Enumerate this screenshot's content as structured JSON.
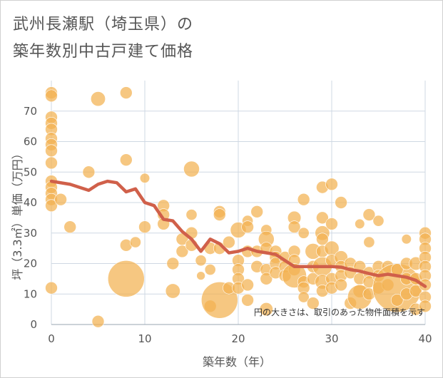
{
  "header": {
    "title_line1": "武州長瀬駅（埼玉県）の",
    "title_line2": "築年数別中古戸建て価格"
  },
  "chart_data": {
    "type": "scatter",
    "xlabel": "築年数（年）",
    "ylabel": "坪（3.3㎡）単価（万円）",
    "xlim": [
      0,
      40
    ],
    "ylim": [
      0,
      80
    ],
    "x_ticks": [
      0,
      10,
      20,
      30,
      40
    ],
    "y_ticks": [
      0,
      10,
      20,
      30,
      40,
      50,
      60,
      70
    ],
    "grid": true,
    "note": "円の大きさは、取引のあった物件面積を示す",
    "colors": {
      "bubble": "#f2b251",
      "trend": "#d0604a",
      "grid": "#cfd8e3"
    },
    "bubbles": [
      {
        "x": 0,
        "y": 76,
        "s": 1
      },
      {
        "x": 0,
        "y": 75,
        "s": 1
      },
      {
        "x": 0,
        "y": 68,
        "s": 1
      },
      {
        "x": 0,
        "y": 66,
        "s": 1
      },
      {
        "x": 0,
        "y": 64,
        "s": 1
      },
      {
        "x": 0,
        "y": 61,
        "s": 1
      },
      {
        "x": 0,
        "y": 59,
        "s": 1
      },
      {
        "x": 0,
        "y": 57,
        "s": 1
      },
      {
        "x": 0,
        "y": 53,
        "s": 1
      },
      {
        "x": 0,
        "y": 47,
        "s": 1
      },
      {
        "x": 0,
        "y": 45,
        "s": 1
      },
      {
        "x": 0,
        "y": 43,
        "s": 1
      },
      {
        "x": 0,
        "y": 41,
        "s": 1
      },
      {
        "x": 0,
        "y": 39,
        "s": 1
      },
      {
        "x": 0,
        "y": 12,
        "s": 1
      },
      {
        "x": 1,
        "y": 41,
        "s": 1
      },
      {
        "x": 2,
        "y": 32,
        "s": 1
      },
      {
        "x": 4,
        "y": 50,
        "s": 1
      },
      {
        "x": 5,
        "y": 74,
        "s": 1.2
      },
      {
        "x": 5,
        "y": 1,
        "s": 1
      },
      {
        "x": 8,
        "y": 76,
        "s": 1
      },
      {
        "x": 8,
        "y": 54,
        "s": 1
      },
      {
        "x": 8,
        "y": 26,
        "s": 1
      },
      {
        "x": 8,
        "y": 15,
        "s": 3
      },
      {
        "x": 9,
        "y": 27,
        "s": 0.9
      },
      {
        "x": 10,
        "y": 48,
        "s": 0.8
      },
      {
        "x": 10,
        "y": 32,
        "s": 1
      },
      {
        "x": 12,
        "y": 39,
        "s": 1
      },
      {
        "x": 12,
        "y": 36,
        "s": 1
      },
      {
        "x": 12,
        "y": 33,
        "s": 1
      },
      {
        "x": 13,
        "y": 20,
        "s": 1
      },
      {
        "x": 13,
        "y": 11,
        "s": 1.2
      },
      {
        "x": 14,
        "y": 28,
        "s": 1
      },
      {
        "x": 14,
        "y": 24,
        "s": 1
      },
      {
        "x": 15,
        "y": 51,
        "s": 1.3
      },
      {
        "x": 15,
        "y": 36,
        "s": 0.9
      },
      {
        "x": 15,
        "y": 30,
        "s": 1
      },
      {
        "x": 15,
        "y": 26,
        "s": 1
      },
      {
        "x": 16,
        "y": 16,
        "s": 0.7
      },
      {
        "x": 16,
        "y": 21,
        "s": 0.9
      },
      {
        "x": 17,
        "y": 25,
        "s": 1
      },
      {
        "x": 17,
        "y": 18,
        "s": 0.9
      },
      {
        "x": 17,
        "y": 6,
        "s": 1
      },
      {
        "x": 18,
        "y": 37,
        "s": 1
      },
      {
        "x": 18,
        "y": 36,
        "s": 1
      },
      {
        "x": 18,
        "y": 25,
        "s": 1
      },
      {
        "x": 18,
        "y": 8,
        "s": 3
      },
      {
        "x": 19,
        "y": 12,
        "s": 1
      },
      {
        "x": 19,
        "y": 27,
        "s": 1
      },
      {
        "x": 20,
        "y": 31,
        "s": 1.3
      },
      {
        "x": 20,
        "y": 21,
        "s": 1
      },
      {
        "x": 20,
        "y": 18,
        "s": 1
      },
      {
        "x": 20,
        "y": 15,
        "s": 1
      },
      {
        "x": 20,
        "y": 12,
        "s": 1
      },
      {
        "x": 21,
        "y": 34,
        "s": 0.9
      },
      {
        "x": 21,
        "y": 32,
        "s": 1
      },
      {
        "x": 21,
        "y": 24,
        "s": 1
      },
      {
        "x": 21,
        "y": 13,
        "s": 1
      },
      {
        "x": 21,
        "y": 8,
        "s": 1
      },
      {
        "x": 22,
        "y": 37,
        "s": 1
      },
      {
        "x": 22,
        "y": 24,
        "s": 1
      },
      {
        "x": 22,
        "y": 19,
        "s": 1
      },
      {
        "x": 23,
        "y": 31,
        "s": 0.9
      },
      {
        "x": 23,
        "y": 28,
        "s": 1.3
      },
      {
        "x": 23,
        "y": 25,
        "s": 1
      },
      {
        "x": 23,
        "y": 18,
        "s": 1
      },
      {
        "x": 23,
        "y": 15,
        "s": 1
      },
      {
        "x": 23,
        "y": 5,
        "s": 1.1
      },
      {
        "x": 24,
        "y": 24,
        "s": 1
      },
      {
        "x": 24,
        "y": 22,
        "s": 1
      },
      {
        "x": 24,
        "y": 20,
        "s": 1
      },
      {
        "x": 24,
        "y": 17,
        "s": 1
      },
      {
        "x": 25,
        "y": 22,
        "s": 1
      },
      {
        "x": 25,
        "y": 19,
        "s": 1
      },
      {
        "x": 25,
        "y": 16,
        "s": 1
      },
      {
        "x": 26,
        "y": 35,
        "s": 1.1
      },
      {
        "x": 26,
        "y": 32,
        "s": 1
      },
      {
        "x": 26,
        "y": 24,
        "s": 1
      },
      {
        "x": 26,
        "y": 21,
        "s": 1
      },
      {
        "x": 26,
        "y": 18,
        "s": 1
      },
      {
        "x": 26,
        "y": 16,
        "s": 2
      },
      {
        "x": 27,
        "y": 41,
        "s": 1
      },
      {
        "x": 27,
        "y": 30,
        "s": 0.9
      },
      {
        "x": 27,
        "y": 14,
        "s": 1
      },
      {
        "x": 27,
        "y": 12,
        "s": 1
      },
      {
        "x": 27,
        "y": 9,
        "s": 0.9
      },
      {
        "x": 28,
        "y": 24,
        "s": 1.3
      },
      {
        "x": 28,
        "y": 19,
        "s": 1
      },
      {
        "x": 28,
        "y": 15,
        "s": 1
      },
      {
        "x": 28,
        "y": 7,
        "s": 1
      },
      {
        "x": 29,
        "y": 45,
        "s": 1
      },
      {
        "x": 29,
        "y": 35,
        "s": 1
      },
      {
        "x": 29,
        "y": 30,
        "s": 1.2
      },
      {
        "x": 29,
        "y": 28,
        "s": 1
      },
      {
        "x": 29,
        "y": 24,
        "s": 1
      },
      {
        "x": 29,
        "y": 19,
        "s": 1.6
      },
      {
        "x": 29,
        "y": 14,
        "s": 1.2
      },
      {
        "x": 29,
        "y": 11,
        "s": 1
      },
      {
        "x": 30,
        "y": 46,
        "s": 1
      },
      {
        "x": 30,
        "y": 33,
        "s": 1
      },
      {
        "x": 30,
        "y": 25,
        "s": 1.2
      },
      {
        "x": 30,
        "y": 21,
        "s": 1
      },
      {
        "x": 30,
        "y": 15,
        "s": 1
      },
      {
        "x": 30,
        "y": 12,
        "s": 1
      },
      {
        "x": 31,
        "y": 40,
        "s": 1
      },
      {
        "x": 31,
        "y": 22,
        "s": 1.1
      },
      {
        "x": 31,
        "y": 19,
        "s": 1
      },
      {
        "x": 31,
        "y": 16,
        "s": 1
      },
      {
        "x": 31,
        "y": 13,
        "s": 1
      },
      {
        "x": 32,
        "y": 20,
        "s": 1
      },
      {
        "x": 32,
        "y": 17,
        "s": 1
      },
      {
        "x": 32,
        "y": 7,
        "s": 1
      },
      {
        "x": 33,
        "y": 33,
        "s": 0.8
      },
      {
        "x": 33,
        "y": 19,
        "s": 1
      },
      {
        "x": 33,
        "y": 15,
        "s": 1
      },
      {
        "x": 33,
        "y": 11,
        "s": 1.1
      },
      {
        "x": 33,
        "y": 9,
        "s": 2
      },
      {
        "x": 34,
        "y": 36,
        "s": 1
      },
      {
        "x": 34,
        "y": 27,
        "s": 0.9
      },
      {
        "x": 34,
        "y": 17,
        "s": 1
      },
      {
        "x": 34,
        "y": 14,
        "s": 1
      },
      {
        "x": 34,
        "y": 10,
        "s": 1
      },
      {
        "x": 35,
        "y": 34,
        "s": 0.9
      },
      {
        "x": 35,
        "y": 19,
        "s": 1
      },
      {
        "x": 35,
        "y": 16,
        "s": 1
      },
      {
        "x": 35,
        "y": 12,
        "s": 1
      },
      {
        "x": 36,
        "y": 19,
        "s": 1
      },
      {
        "x": 36,
        "y": 13,
        "s": 1
      },
      {
        "x": 37,
        "y": 12,
        "s": 4
      },
      {
        "x": 37,
        "y": 18,
        "s": 1
      },
      {
        "x": 37,
        "y": 8,
        "s": 1
      },
      {
        "x": 38,
        "y": 28,
        "s": 0.8
      },
      {
        "x": 38,
        "y": 20,
        "s": 1
      },
      {
        "x": 38,
        "y": 15,
        "s": 1
      },
      {
        "x": 38,
        "y": 10,
        "s": 1
      },
      {
        "x": 39,
        "y": 20,
        "s": 1.1
      },
      {
        "x": 39,
        "y": 15,
        "s": 1
      },
      {
        "x": 39,
        "y": 11,
        "s": 1
      },
      {
        "x": 39,
        "y": 5,
        "s": 1
      },
      {
        "x": 40,
        "y": 30,
        "s": 1
      },
      {
        "x": 40,
        "y": 28,
        "s": 1
      },
      {
        "x": 40,
        "y": 25,
        "s": 1
      },
      {
        "x": 40,
        "y": 22,
        "s": 1
      },
      {
        "x": 40,
        "y": 19,
        "s": 1
      },
      {
        "x": 40,
        "y": 16,
        "s": 1
      },
      {
        "x": 40,
        "y": 13,
        "s": 1
      },
      {
        "x": 40,
        "y": 9,
        "s": 1
      },
      {
        "x": 40,
        "y": 6,
        "s": 1
      }
    ],
    "trend": {
      "x": [
        0,
        2,
        3,
        4,
        5,
        6,
        7,
        8,
        9,
        10,
        11,
        12,
        13,
        14,
        15,
        16,
        17,
        18,
        19,
        20,
        21,
        22,
        23,
        24,
        25,
        26,
        27,
        28,
        29,
        30,
        31,
        32,
        33,
        34,
        35,
        36,
        37,
        38,
        39,
        40
      ],
      "y": [
        47,
        46,
        45,
        44,
        46,
        47,
        46.5,
        43.5,
        44.5,
        40,
        39,
        34.5,
        34,
        30.5,
        28,
        24,
        28,
        26.5,
        23.5,
        24,
        25,
        24,
        23.5,
        23,
        21,
        19,
        19,
        19,
        19,
        19,
        18.8,
        18,
        17.5,
        16.7,
        16,
        16.5,
        16,
        15.5,
        14.5,
        12.5
      ]
    }
  }
}
